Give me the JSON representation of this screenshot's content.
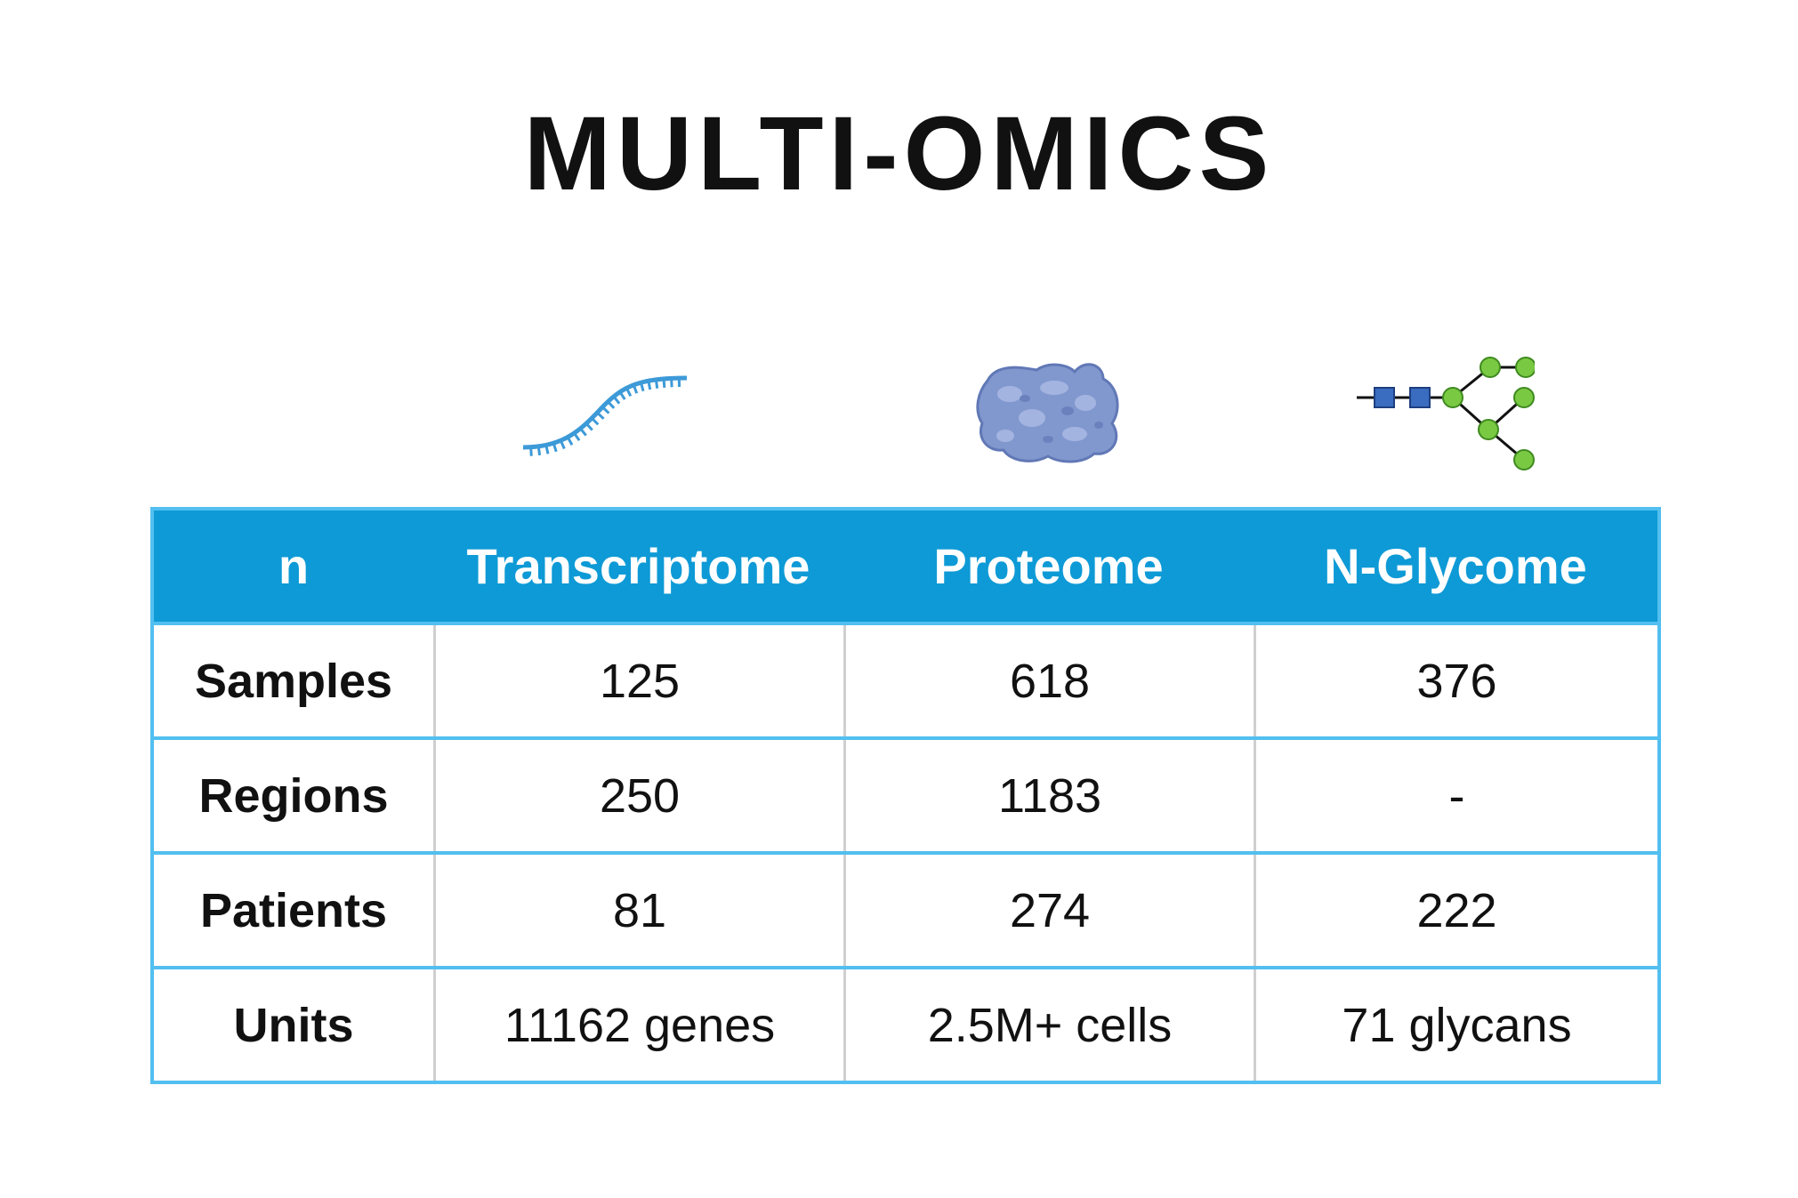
{
  "title": "MULTI-OMICS",
  "icons": {
    "transcriptome": "rna-strand-icon",
    "proteome": "protein-blob-icon",
    "glycome": "glycan-tree-icon"
  },
  "colors": {
    "header_bg": "#0e9ad6",
    "border": "#52bff0",
    "rna": "#3d9ad8",
    "protein": "#7a90c8",
    "glycan_square": "#3a6cc0",
    "glycan_circle": "#7ac943"
  },
  "chart_data": {
    "type": "table",
    "columns": [
      "n",
      "Transcriptome",
      "Proteome",
      "N-Glycome"
    ],
    "rows": [
      {
        "label": "Samples",
        "values": [
          "125",
          "618",
          "376"
        ]
      },
      {
        "label": "Regions",
        "values": [
          "250",
          "1183",
          "-"
        ]
      },
      {
        "label": "Patients",
        "values": [
          "81",
          "274",
          "222"
        ]
      },
      {
        "label": "Units",
        "values": [
          "11162 genes",
          "2.5M+ cells",
          "71 glycans"
        ]
      }
    ]
  }
}
